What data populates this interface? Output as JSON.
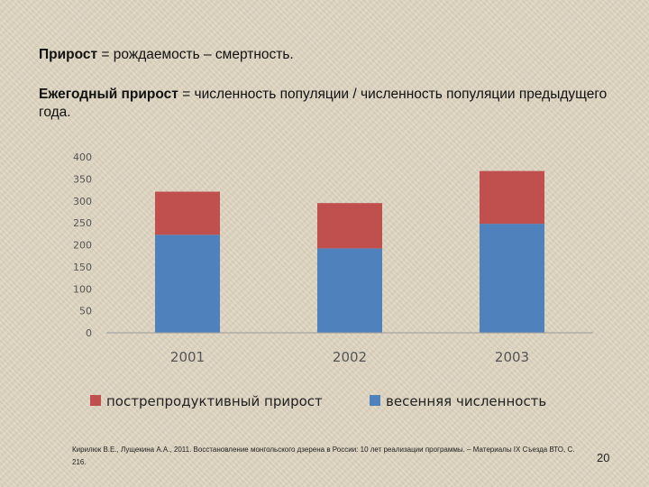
{
  "text": {
    "line1_bold": "Прирост",
    "line1_rest": " = рождаемость – смертность.",
    "line2_bold": "Ежегодный прирост",
    "line2_rest": " = численность популяции / численность популяции предыдущего года."
  },
  "chart_data": {
    "type": "bar",
    "stacked": true,
    "categories": [
      "2001",
      "2002",
      "2003"
    ],
    "series": [
      {
        "name": "весенняя численность",
        "color": "#4f81bd",
        "values": [
          223,
          192,
          248
        ]
      },
      {
        "name": "пострепродуктивный прирост",
        "color": "#c0504d",
        "values": [
          98,
          103,
          120
        ]
      }
    ],
    "ylim": [
      0,
      400
    ],
    "yticks": [
      "0",
      "50",
      "100",
      "150",
      "200",
      "250",
      "300",
      "350",
      "400"
    ],
    "grid": false,
    "legend": "bottom"
  },
  "footer": {
    "citation": "Кирилюк В.Е., Лущекина А.А., 2011. Восстановление монгольского дзерена в России: 10 лет реализации программы. – Материалы IX Съезда ВТО, С. 216.",
    "page_number": "20"
  }
}
